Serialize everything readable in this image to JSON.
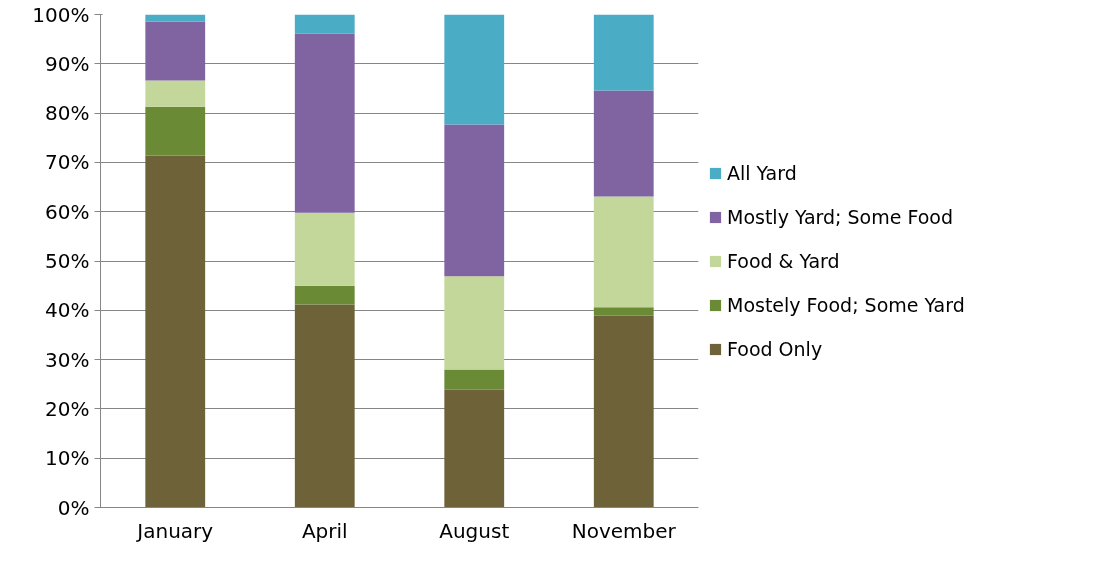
{
  "chart_data": {
    "type": "bar",
    "stacked": true,
    "categories": [
      "January",
      "April",
      "August",
      "November"
    ],
    "series": [
      {
        "name": "Food Only",
        "color": "#6e6239",
        "values": [
          71.4,
          41.2,
          23.9,
          38.9
        ]
      },
      {
        "name": "Mostely Food; Some Yard",
        "color": "#6a8a36",
        "values": [
          9.9,
          3.8,
          4.1,
          1.7
        ]
      },
      {
        "name": "Food & Yard",
        "color": "#c4d79b",
        "values": [
          5.3,
          14.8,
          18.9,
          22.5
        ]
      },
      {
        "name": "Mostly Yard; Some Food",
        "color": "#8064a2",
        "values": [
          12.0,
          36.3,
          30.8,
          21.5
        ]
      },
      {
        "name": "All Yard",
        "color": "#4bacc6",
        "values": [
          1.4,
          3.9,
          22.3,
          15.4
        ]
      }
    ],
    "ylim": [
      0,
      100
    ],
    "yticks": [
      {
        "value": 0,
        "label": "0%"
      },
      {
        "value": 10,
        "label": "10%"
      },
      {
        "value": 20,
        "label": "20%"
      },
      {
        "value": 30,
        "label": "30%"
      },
      {
        "value": 40,
        "label": "40%"
      },
      {
        "value": 50,
        "label": "50%"
      },
      {
        "value": 60,
        "label": "60%"
      },
      {
        "value": 70,
        "label": "70%"
      },
      {
        "value": 80,
        "label": "80%"
      },
      {
        "value": 90,
        "label": "90%"
      },
      {
        "value": 100,
        "label": "100%"
      }
    ],
    "grid": "y",
    "legend": "right"
  }
}
